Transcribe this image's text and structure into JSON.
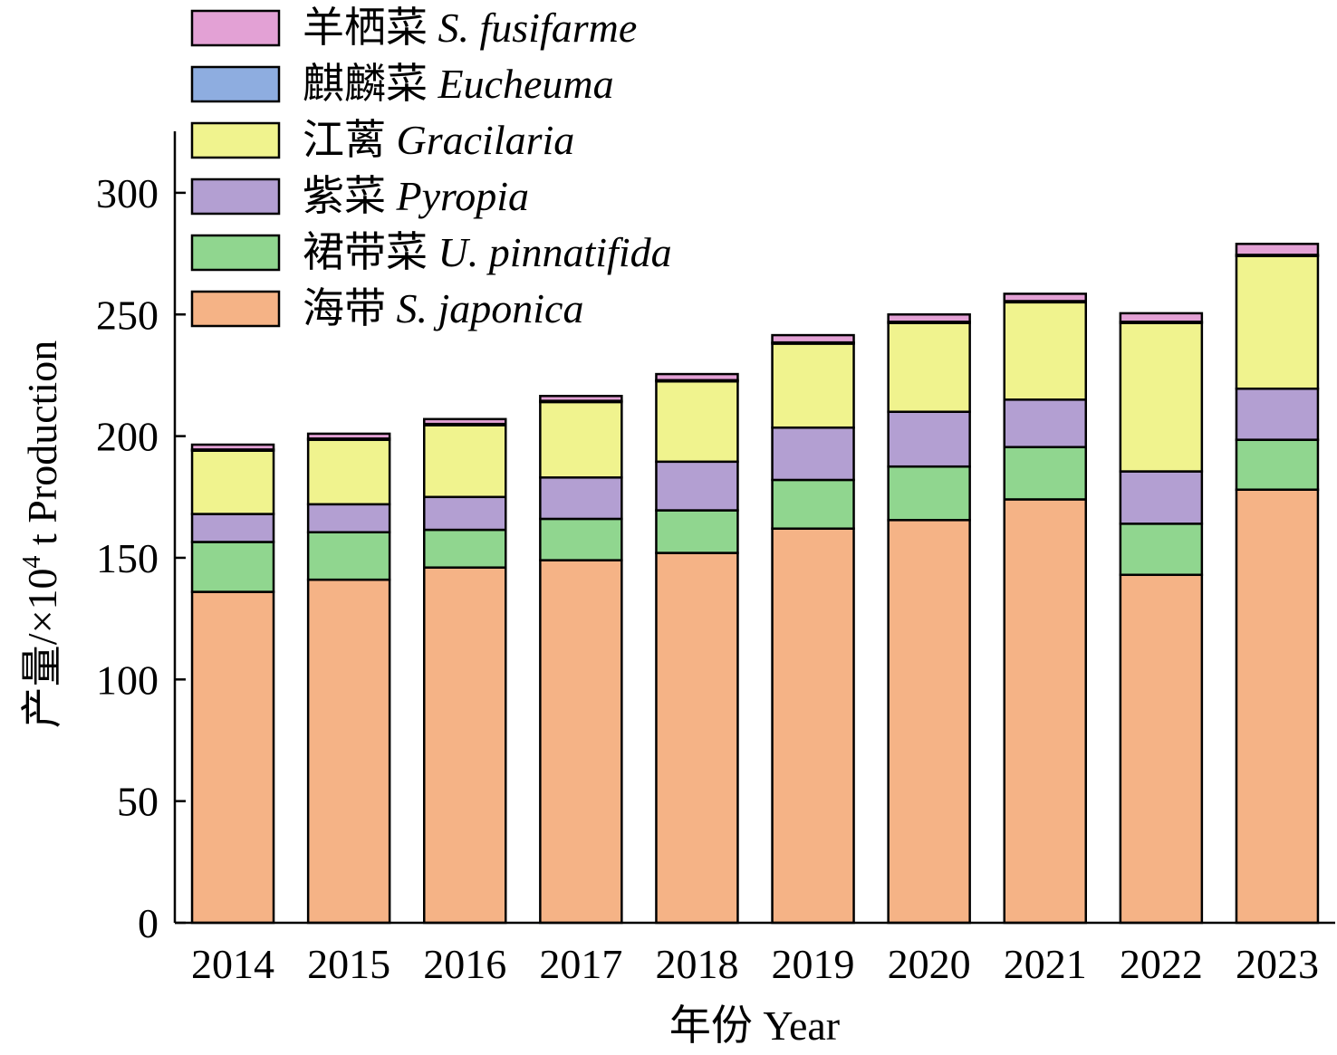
{
  "chart_data": {
    "type": "bar",
    "stacked": true,
    "categories": [
      "2014",
      "2015",
      "2016",
      "2017",
      "2018",
      "2019",
      "2020",
      "2021",
      "2022",
      "2023"
    ],
    "xlabel": "年份 Year",
    "ylabel": {
      "prefix": "产量/×10",
      "sup": "4",
      "suffix": " t Production"
    },
    "ylim": [
      0,
      325
    ],
    "yticks": [
      0,
      50,
      100,
      150,
      200,
      250,
      300
    ],
    "grid": false,
    "legend_position": "top-left",
    "series": [
      {
        "name": "海带",
        "latin": "S. japonica",
        "color": "#F5B386",
        "values": [
          136,
          141,
          146,
          149,
          152,
          162,
          165.5,
          174,
          143,
          178
        ]
      },
      {
        "name": "裙带菜",
        "latin": "U. pinnatifida",
        "color": "#90D68F",
        "values": [
          20.5,
          19.5,
          15.5,
          17,
          17.5,
          20,
          22,
          21.5,
          21,
          20.5
        ]
      },
      {
        "name": "紫菜",
        "latin": "Pyropia",
        "color": "#B39FD2",
        "values": [
          11.5,
          11.5,
          13.5,
          17,
          20,
          21.5,
          22.5,
          19.5,
          21.5,
          21
        ]
      },
      {
        "name": "江蓠",
        "latin": "Gracilaria",
        "color": "#F0F38E",
        "values": [
          26,
          26.5,
          29.5,
          31,
          33,
          34.5,
          36.5,
          40,
          61,
          54.5
        ]
      },
      {
        "name": "麒麟菜",
        "latin": "Eucheuma",
        "color": "#8EADE0",
        "values": [
          0.5,
          0.5,
          0.5,
          0.5,
          0.5,
          0.5,
          0.5,
          0.5,
          0.5,
          0.5
        ]
      },
      {
        "name": "羊栖菜",
        "latin": "S. fusifarme",
        "color": "#E3A1D5",
        "values": [
          2,
          2,
          2,
          2,
          2.5,
          3,
          3,
          3,
          3.5,
          4.5
        ]
      }
    ]
  }
}
